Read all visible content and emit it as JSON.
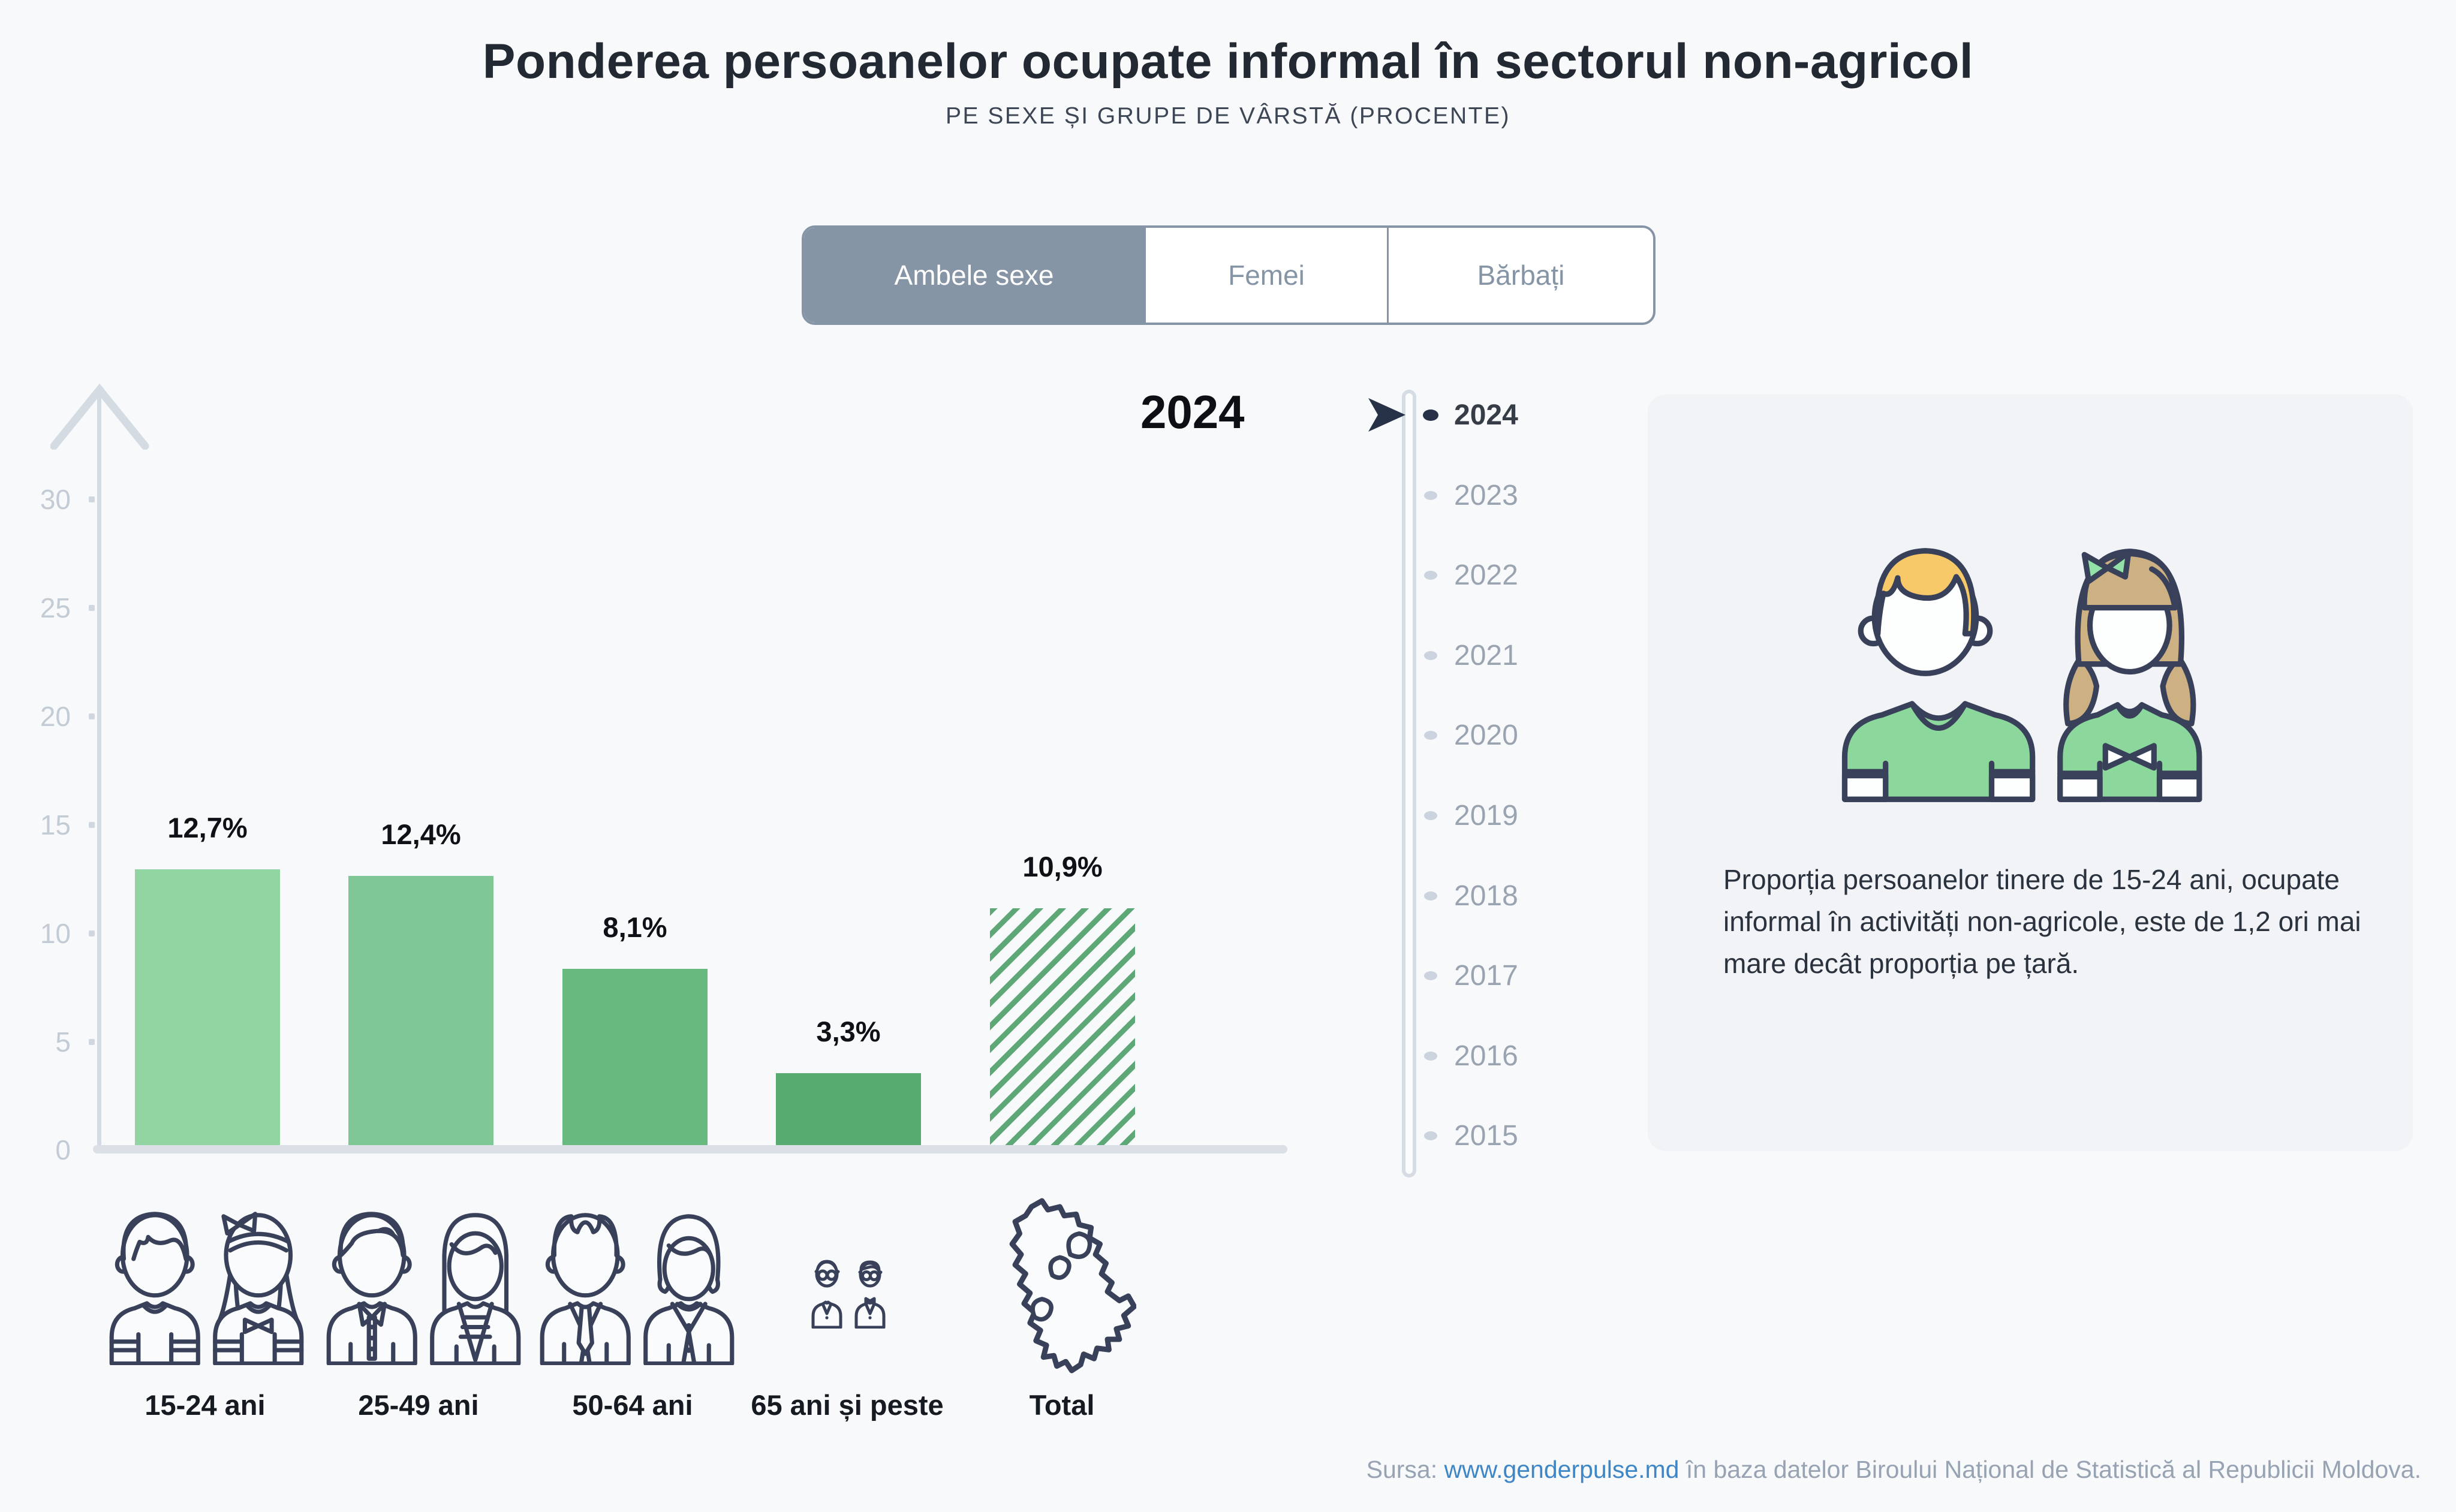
{
  "header": {
    "title": "Ponderea persoanelor ocupate informal în sectorul non-agricol",
    "subtitle": "PE SEXE ȘI GRUPE DE VÂRSTĂ (PROCENTE)"
  },
  "tabs": {
    "items": [
      {
        "label": "Ambele sexe",
        "selected": true
      },
      {
        "label": "Femei",
        "selected": false
      },
      {
        "label": "Bărbați",
        "selected": false
      }
    ]
  },
  "chart_data": {
    "type": "bar",
    "title": "Ponderea persoanelor ocupate informal în sectorul non-agricol",
    "subtitle": "PE SEXE ȘI GRUPE DE VÂRSTĂ (PROCENTE)",
    "year": "2024",
    "categories": [
      "15-24 ani",
      "25-49 ani",
      "50-64 ani",
      "65 ani și peste",
      "Total"
    ],
    "values": [
      12.7,
      12.4,
      8.1,
      3.3,
      10.9
    ],
    "value_labels": [
      "12,7%",
      "12,4%",
      "8,1%",
      "3,3%",
      "10,9%"
    ],
    "yticks": [
      30,
      25,
      20,
      15,
      10,
      5,
      0
    ],
    "ylim": [
      0,
      32
    ],
    "xlabel": "",
    "ylabel": "",
    "grid": false,
    "legend": "none",
    "bar_colors": [
      "#92D5A2",
      "#7FC795",
      "#67B980",
      "#57AB70",
      "hatched #5EA877"
    ],
    "total_bar_style": "diagonal-hatch"
  },
  "selected_year": "2024",
  "timeline": {
    "selected": "2024",
    "years": [
      "2024",
      "2023",
      "2022",
      "2021",
      "2020",
      "2019",
      "2018",
      "2017",
      "2016",
      "2015"
    ]
  },
  "panel": {
    "text": "Proporția persoanelor tinere de 15-24 ani, ocupate informal în activități non-agricole, este de 1,2 ori mai mare decât proporția pe țară."
  },
  "footer": {
    "prefix": "Sursa: ",
    "link": "www.genderpulse.md",
    "suffix": " în baza datelor Biroului Național de Statistică al Republicii Moldova."
  },
  "icons": {
    "young-pair-icon": "boy and girl outline",
    "adult-pair-icon": "man and woman outline",
    "mature-pair-icon": "older man and woman outline",
    "senior-pair-icon": "elderly couple with glasses outline",
    "moldova-map-icon": "Moldova country outline with leaf marks",
    "boy-girl-illustration": "boy and girl in green shirts",
    "timeline-arrow-icon": "dark play arrow pointing at selected year",
    "y-axis-arrow-icon": "upward axis arrow"
  },
  "colors": {
    "background": "#F8F9FB",
    "accent_tab": "#8695A5",
    "bar_green_1": "#92D5A2",
    "bar_green_2": "#7FC795",
    "bar_green_3": "#67B980",
    "bar_green_4": "#57AB70",
    "hatch_green": "#5EA877",
    "timeline_dark": "#273248",
    "link_blue": "#3E86C5",
    "panel_bg": "#F1F3F7",
    "outline_navy": "#39415A",
    "boy_hair": "#F8C969",
    "girl_hair": "#CDB183",
    "shirt_green": "#8BD79C",
    "bow_mint": "#92E2A7"
  }
}
